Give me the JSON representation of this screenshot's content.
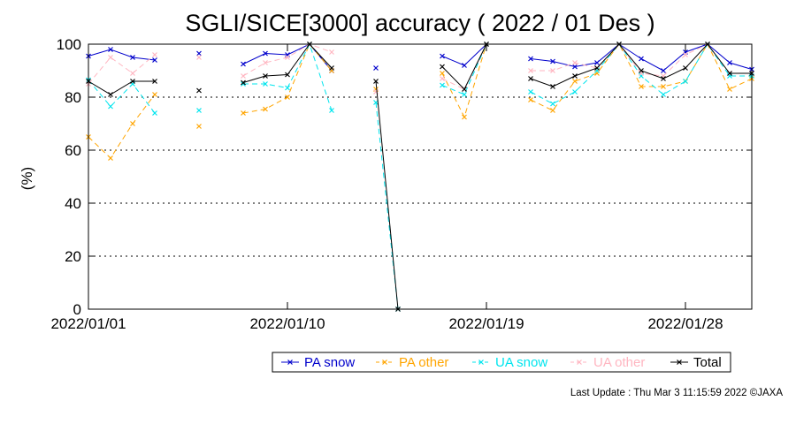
{
  "title": "SGLI/SICE[3000] accuracy ( 2022 / 01 Des )",
  "footer": "Last Update : Thu Mar  3 11:15:59 2022  ©JAXA",
  "chart_data": {
    "type": "line",
    "ylabel": "(%)",
    "ylim": [
      0,
      100
    ],
    "yticks": [
      0,
      20,
      40,
      60,
      80,
      100
    ],
    "xlim": [
      "2022/01/01",
      "2022/01/31"
    ],
    "xticks": [
      "2022/01/01",
      "2022/01/10",
      "2022/01/19",
      "2022/01/28"
    ],
    "grid": "dotted horizontal",
    "legend_position": "bottom",
    "x": [
      "2022/01/01",
      "2022/01/02",
      "2022/01/03",
      "2022/01/04",
      "2022/01/05",
      "2022/01/06",
      "2022/01/07",
      "2022/01/08",
      "2022/01/09",
      "2022/01/10",
      "2022/01/11",
      "2022/01/12",
      "2022/01/13",
      "2022/01/14",
      "2022/01/15",
      "2022/01/16",
      "2022/01/17",
      "2022/01/18",
      "2022/01/19",
      "2022/01/20",
      "2022/01/21",
      "2022/01/22",
      "2022/01/23",
      "2022/01/24",
      "2022/01/25",
      "2022/01/26",
      "2022/01/27",
      "2022/01/28",
      "2022/01/29",
      "2022/01/30",
      "2022/01/31"
    ],
    "series": [
      {
        "name": "PA snow",
        "color": "#0000cc",
        "values": [
          95.5,
          98,
          95,
          94,
          null,
          96.5,
          null,
          92.5,
          96.5,
          96,
          100,
          90,
          null,
          91,
          null,
          null,
          95.5,
          92,
          100,
          null,
          94.5,
          93.5,
          91.5,
          93,
          100,
          94.5,
          90,
          97,
          100,
          93,
          90.5
        ]
      },
      {
        "name": "PA other",
        "color": "#ffa500",
        "values": [
          65,
          57,
          70,
          81,
          null,
          69,
          null,
          74,
          75.5,
          80,
          100,
          90,
          null,
          83,
          null,
          null,
          89,
          72.5,
          100,
          null,
          79,
          75,
          86,
          89,
          100,
          84,
          84,
          86,
          100,
          83,
          87
        ]
      },
      {
        "name": "UA snow",
        "color": "#00e5ee",
        "values": [
          86.5,
          76.5,
          85,
          74,
          null,
          75,
          null,
          85,
          85,
          83.5,
          100,
          75,
          null,
          78,
          0,
          null,
          84.5,
          81,
          100,
          null,
          82,
          77.5,
          82,
          90,
          100,
          88,
          81,
          86,
          100,
          88,
          88
        ]
      },
      {
        "name": "UA other",
        "color": "#ffb6c1",
        "values": [
          85,
          95,
          89,
          96,
          null,
          95,
          null,
          88,
          93,
          95,
          100,
          97,
          null,
          82,
          null,
          null,
          87,
          83,
          100,
          null,
          90,
          90,
          93,
          91,
          100,
          89,
          88,
          96,
          100,
          89,
          89
        ]
      },
      {
        "name": "Total",
        "color": "#000000",
        "values": [
          86,
          81,
          86,
          86,
          null,
          82.5,
          null,
          85.5,
          88,
          88.5,
          100,
          91,
          null,
          86,
          0,
          null,
          91.5,
          83,
          100,
          null,
          87,
          84,
          88,
          91,
          100,
          90,
          87,
          91,
          100,
          89,
          89
        ]
      }
    ]
  }
}
